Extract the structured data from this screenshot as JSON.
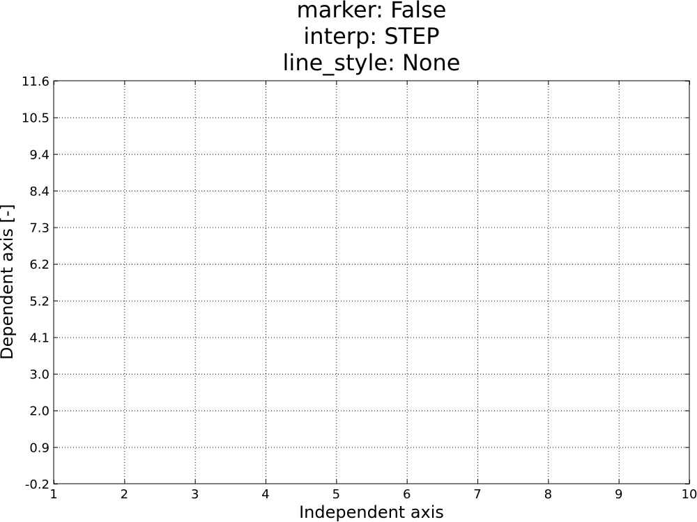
{
  "chart_data": {
    "type": "line",
    "title_lines": [
      "marker: False",
      "interp: STEP",
      "line_style: None"
    ],
    "xlabel": "Independent axis",
    "ylabel": "Dependent axis [-]",
    "xlim": [
      1,
      10
    ],
    "ylim": [
      -0.2,
      11.6
    ],
    "x_ticks": [
      "1",
      "2",
      "3",
      "4",
      "5",
      "6",
      "7",
      "8",
      "9",
      "10"
    ],
    "y_ticks": [
      "-0.2",
      "0.9",
      "2.0",
      "3.0",
      "4.1",
      "5.2",
      "6.2",
      "7.3",
      "8.4",
      "9.4",
      "10.5",
      "11.6"
    ],
    "grid": true,
    "grid_style": "dotted",
    "series": []
  }
}
